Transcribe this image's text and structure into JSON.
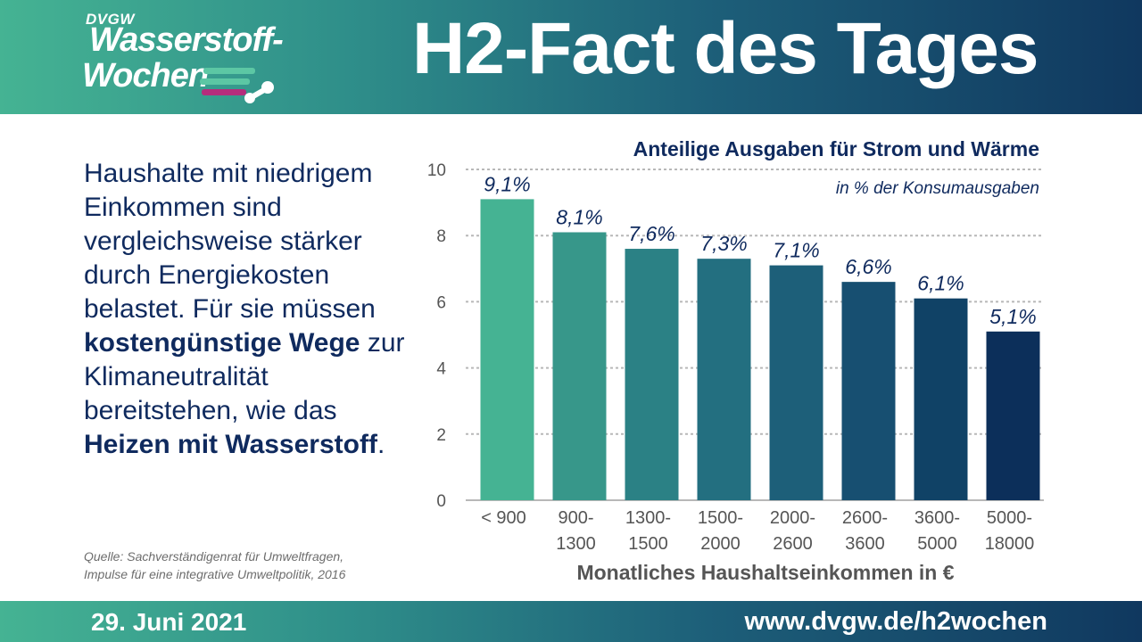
{
  "logo": {
    "org": "DVGW",
    "line1": "Wasserstoff-",
    "line2": "Wochen"
  },
  "header": {
    "title": "H2-Fact des Tages"
  },
  "body": {
    "p1": "Haushalte mit niedrigem Einkommen sind vergleichsweise stärker durch Energiekosten belastet. Für sie müssen ",
    "bold1": "kostengünstige Wege",
    "p2": " zur Klimaneutralität bereitstehen, wie das ",
    "bold2": "Heizen mit Wasserstoff",
    "p3": "."
  },
  "source": {
    "line1": "Quelle: Sachverständigenrat für Umweltfragen,",
    "line2": "Impulse für eine integrative Umweltpolitik, 2016"
  },
  "footer": {
    "date": "29. Juni 2021",
    "url": "www.dvgw.de/h2wochen"
  },
  "chart_data": {
    "type": "bar",
    "title": "Anteilige Ausgaben für Strom und Wärme",
    "subtitle": "in % der Konsumausgaben",
    "xlabel": "Monatliches Haushaltseinkommen in €",
    "ylabel": "",
    "ylim": [
      0,
      10
    ],
    "yticks": [
      0,
      2,
      4,
      6,
      8,
      10
    ],
    "grid": true,
    "categories": [
      [
        "< 900"
      ],
      [
        "900-",
        "1300"
      ],
      [
        "1300-",
        "1500"
      ],
      [
        "1500-",
        "2000"
      ],
      [
        "2000-",
        "2600"
      ],
      [
        "2600-",
        "3600"
      ],
      [
        "3600-",
        "5000"
      ],
      [
        "5000-",
        "18000"
      ]
    ],
    "values": [
      9.1,
      8.1,
      7.6,
      7.3,
      7.1,
      6.6,
      6.1,
      5.1
    ],
    "data_labels": [
      "9,1%",
      "8,1%",
      "7,6%",
      "7,3%",
      "7,1%",
      "6,6%",
      "6,1%",
      "5,1%"
    ],
    "colors": [
      "#45b393",
      "#37978a",
      "#2b8185",
      "#236f80",
      "#1d5f79",
      "#174f71",
      "#104266",
      "#0c2f5a"
    ],
    "label_color": "#0f2a5e",
    "title_color": "#0f2a5e",
    "axis_text_color": "#555555"
  }
}
